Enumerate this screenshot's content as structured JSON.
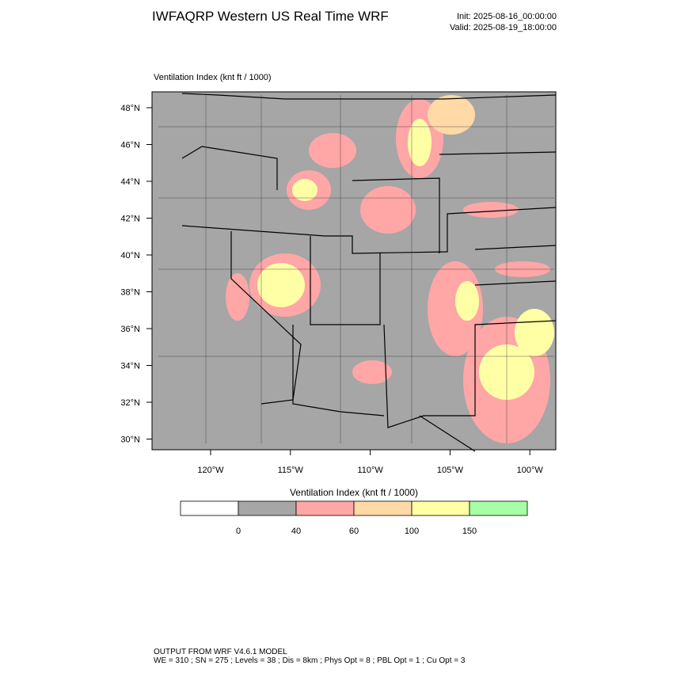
{
  "header": {
    "title": "IWFAQRP Western US Real Time WRF",
    "init": "Init: 2025-08-16_00:00:00",
    "valid": "Valid: 2025-08-19_18:00:00"
  },
  "map": {
    "label": "Ventilation Index   (knt ft / 1000)",
    "lat_labels": [
      "48°N",
      "46°N",
      "44°N",
      "42°N",
      "40°N",
      "38°N",
      "36°N",
      "34°N",
      "32°N",
      "30°N"
    ],
    "lon_labels": [
      "120°W",
      "115°W",
      "110°W",
      "105°W",
      "100°W"
    ]
  },
  "colorbar": {
    "title": "Ventilation Index   (knt ft / 1000)",
    "colors": [
      "#ffffff",
      "#a6a6a6",
      "#ffa6a6",
      "#ffd9a6",
      "#ffffa6",
      "#a6ffa6"
    ],
    "labels": [
      "0",
      "40",
      "60",
      "100",
      "150"
    ]
  },
  "footer": {
    "line1": "OUTPUT FROM WRF V4.6.1 MODEL",
    "line2": "WE = 310 ; SN = 275 ; Levels = 38 ; Dis = 8km ; Phys Opt = 8 ; PBL Opt = 1 ; Cu Opt = 3"
  }
}
